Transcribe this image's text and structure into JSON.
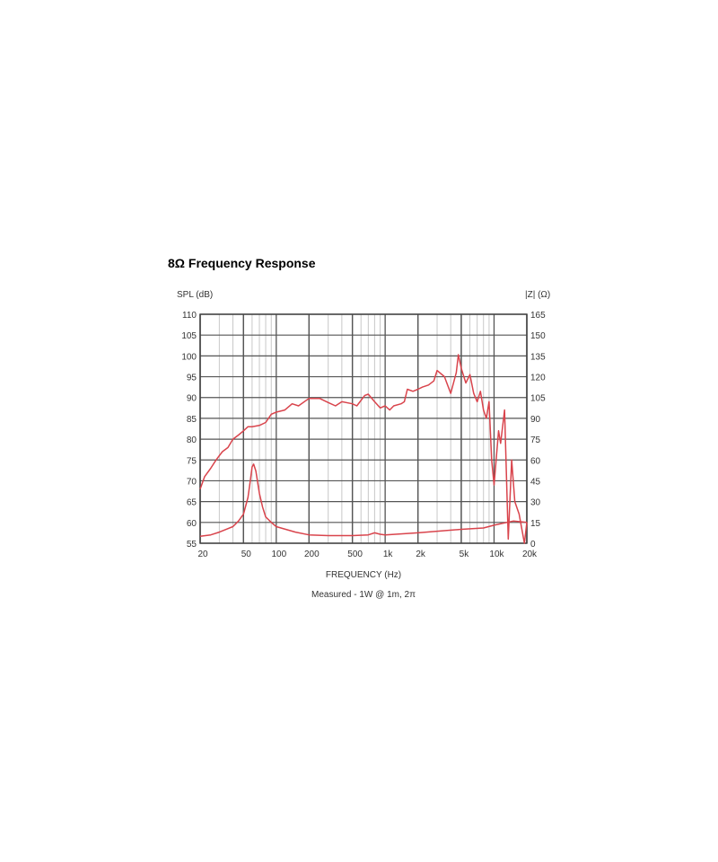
{
  "title": "8Ω Frequency Response",
  "chart_data": {
    "type": "line",
    "xlabel": "FREQUENCY (Hz)",
    "subtitle": "Measured - 1W @ 1m, 2π",
    "ylabel": "SPL (dB)",
    "y2label": "|Z| (Ω)",
    "xscale": "log",
    "xlim": [
      20,
      20000
    ],
    "ylim": [
      55,
      110
    ],
    "y2lim": [
      0,
      165
    ],
    "grid": true,
    "line_color": "#d9444c",
    "xticks": [
      {
        "v": 20,
        "t": "20"
      },
      {
        "v": 50,
        "t": "50"
      },
      {
        "v": 100,
        "t": "100"
      },
      {
        "v": 200,
        "t": "200"
      },
      {
        "v": 500,
        "t": "500"
      },
      {
        "v": 1000,
        "t": "1k"
      },
      {
        "v": 2000,
        "t": "2k"
      },
      {
        "v": 5000,
        "t": "5k"
      },
      {
        "v": 10000,
        "t": "10k"
      },
      {
        "v": 20000,
        "t": "20k"
      }
    ],
    "yticks": [
      "55",
      "60",
      "65",
      "70",
      "75",
      "80",
      "85",
      "90",
      "95",
      "100",
      "105",
      "110"
    ],
    "y2ticks": [
      "0",
      "15",
      "30",
      "45",
      "60",
      "75",
      "90",
      "105",
      "120",
      "135",
      "150",
      "165"
    ],
    "series": [
      {
        "axis": "left",
        "x": [
          20,
          22,
          25,
          28,
          32,
          36,
          40,
          45,
          50,
          55,
          60,
          70,
          80,
          90,
          100,
          120,
          140,
          160,
          200,
          250,
          300,
          350,
          400,
          500,
          550,
          650,
          700,
          800,
          900,
          1000,
          1100,
          1200,
          1400,
          1500,
          1600,
          1800,
          2000,
          2200,
          2500,
          2800,
          3000,
          3500,
          4000,
          4500,
          4700,
          5000,
          5500,
          6000,
          6500,
          7000,
          7500,
          8000,
          8500,
          9000,
          9500,
          10000,
          11000,
          11500,
          12500,
          13500,
          14500,
          15500,
          17000,
          19000,
          20000
        ],
        "y": [
          68,
          71,
          73,
          75,
          77,
          78,
          80,
          81,
          82,
          83,
          83,
          83.3,
          84,
          86,
          86.5,
          87,
          88.5,
          88,
          89.8,
          89.8,
          88.8,
          88,
          89,
          88.5,
          88,
          90.5,
          90.8,
          89,
          87.5,
          88,
          87,
          88,
          88.5,
          89,
          92,
          91.5,
          92,
          92.5,
          93,
          94,
          96.5,
          95,
          91,
          96,
          100.3,
          97,
          93.5,
          95.5,
          91,
          89,
          91.5,
          87,
          85,
          89,
          75,
          69,
          82,
          79,
          87,
          56,
          75,
          65,
          62,
          55,
          60
        ]
      },
      {
        "axis": "right",
        "x": [
          20,
          25,
          30,
          40,
          45,
          50,
          55,
          58,
          60,
          62,
          65,
          70,
          75,
          80,
          90,
          100,
          150,
          200,
          300,
          500,
          700,
          800,
          900,
          1000,
          2000,
          5000,
          8000,
          10000,
          15000,
          20000
        ],
        "y": [
          5,
          6,
          8,
          12,
          16,
          21,
          33,
          46,
          55,
          57,
          52,
          36,
          26,
          19,
          15,
          12,
          8,
          6,
          5.5,
          5.5,
          6,
          7.5,
          6.5,
          6,
          7.5,
          10,
          11,
          13,
          16,
          15
        ]
      }
    ]
  }
}
